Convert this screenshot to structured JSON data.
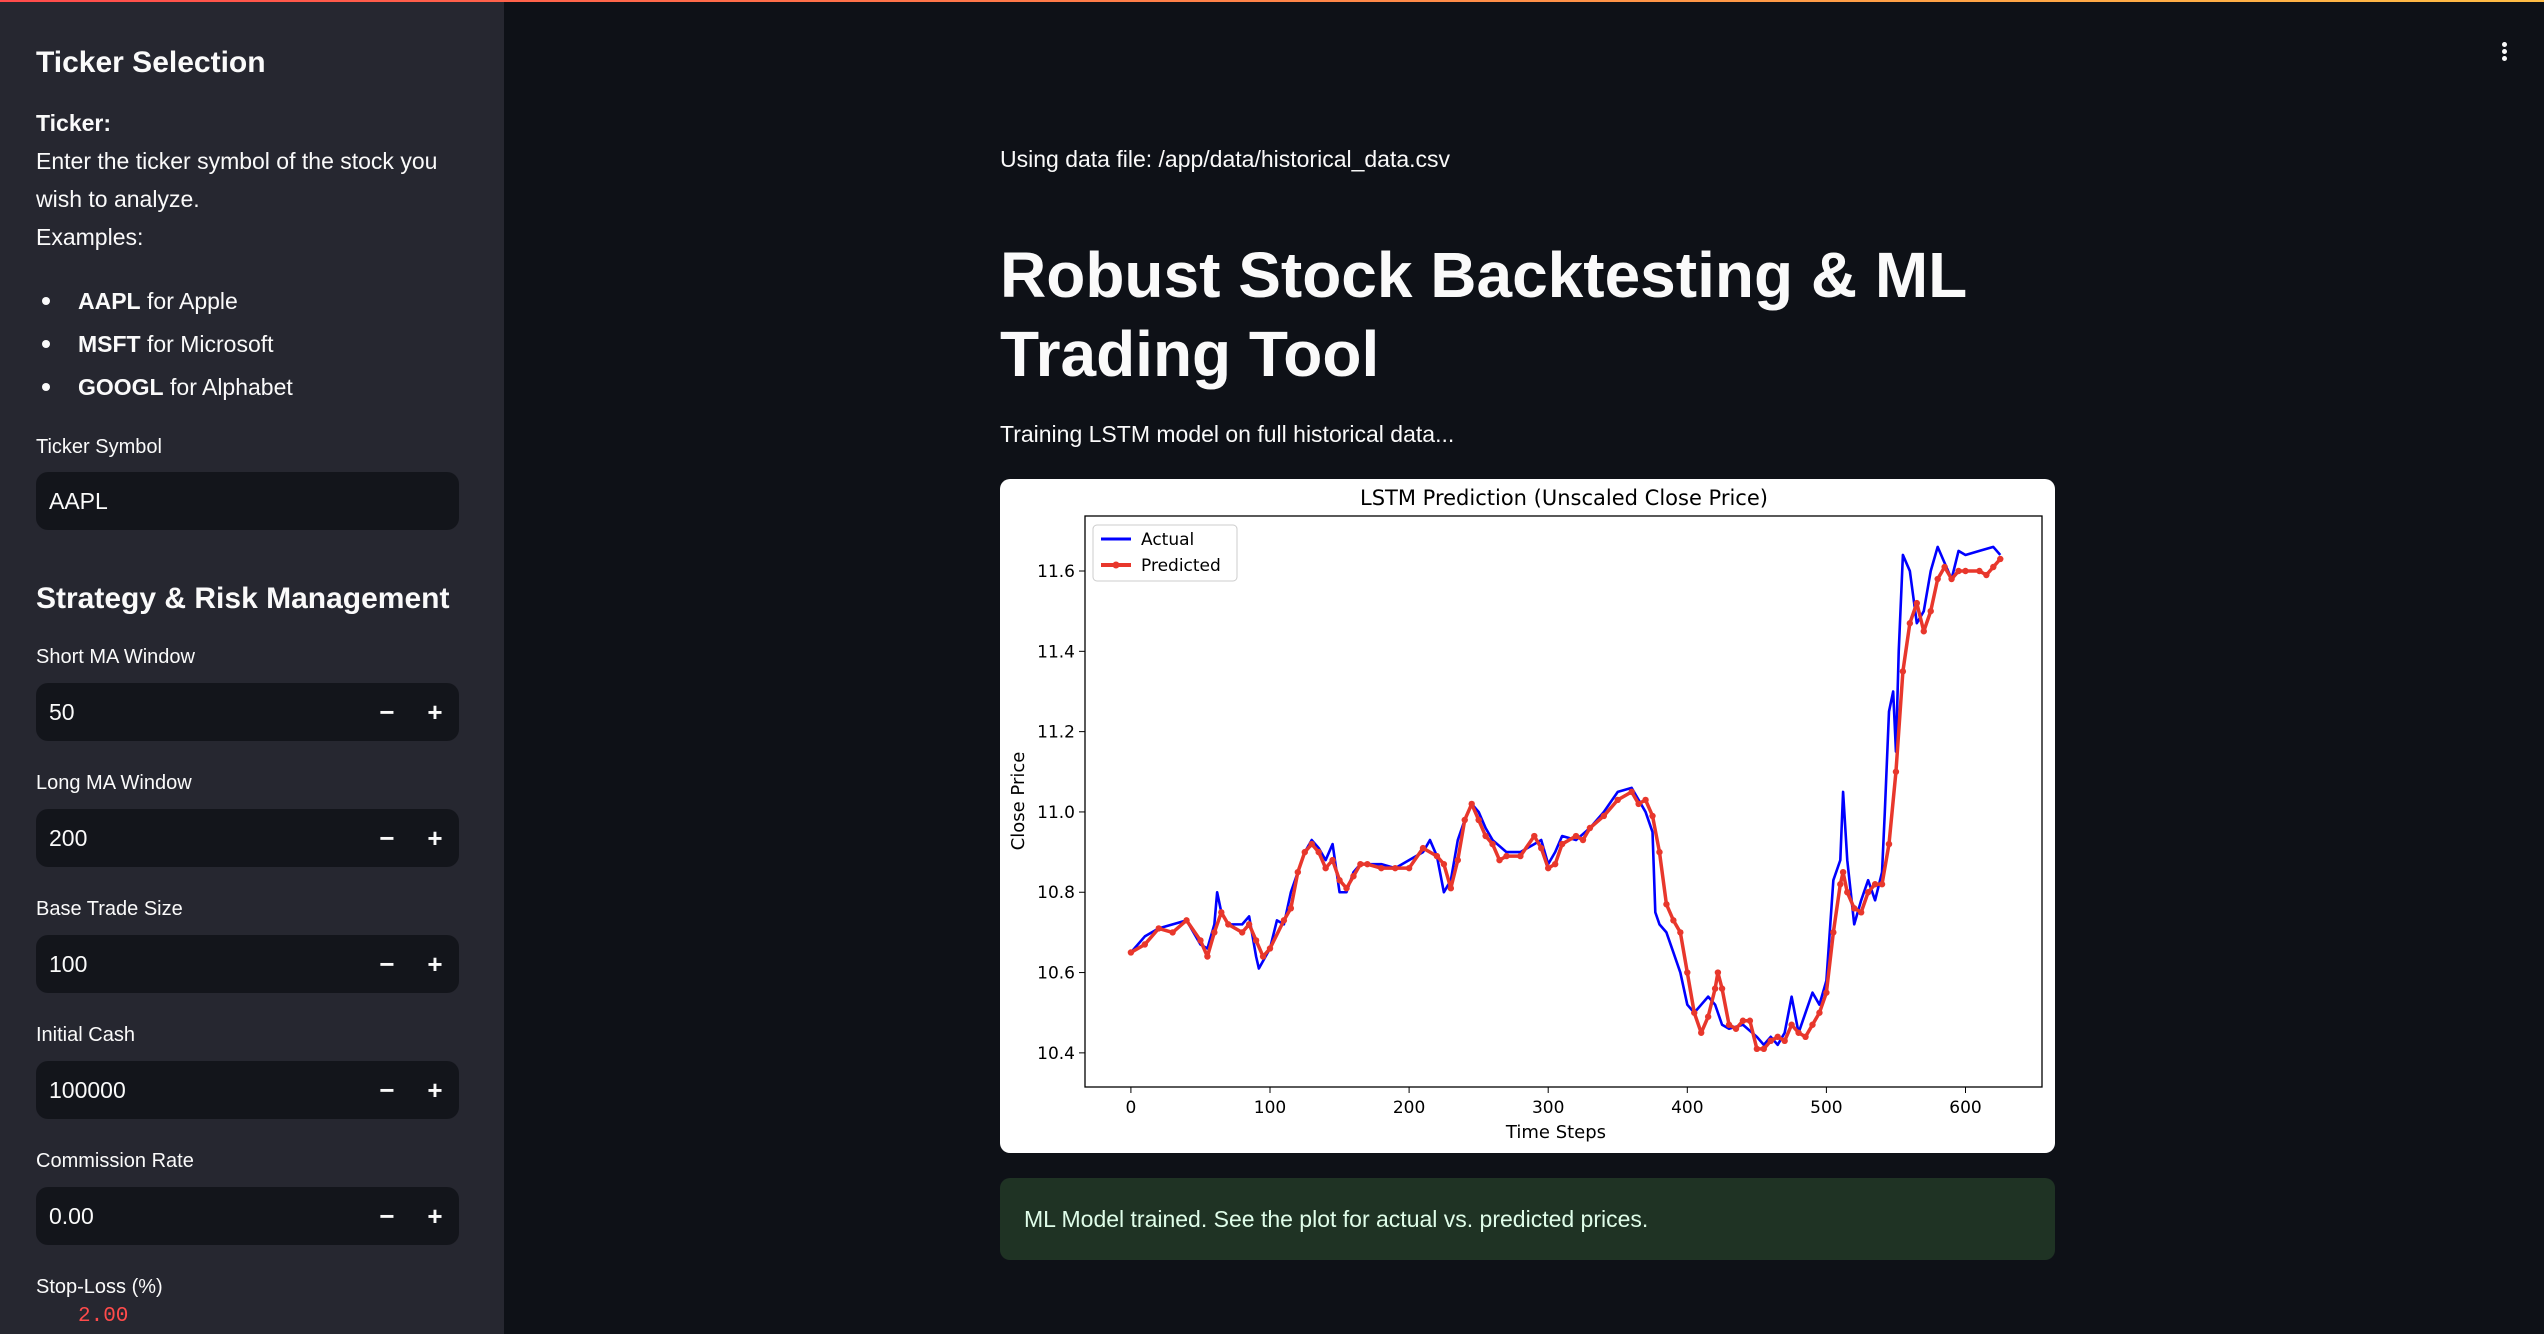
{
  "sidebar": {
    "ticker_heading": "Ticker Selection",
    "ticker_label": "Ticker:",
    "ticker_desc_1": "Enter the ticker symbol of the stock you",
    "ticker_desc_2": "wish to analyze.",
    "examples_label": "Examples:",
    "examples": [
      {
        "sym": "AAPL",
        "desc": " for Apple"
      },
      {
        "sym": "MSFT",
        "desc": " for Microsoft"
      },
      {
        "sym": "GOOGL",
        "desc": " for Alphabet"
      }
    ],
    "ticker_symbol_label": "Ticker Symbol",
    "ticker_symbol_value": "AAPL",
    "strategy_heading": "Strategy & Risk Management",
    "fields": [
      {
        "label": "Short MA Window",
        "value": "50"
      },
      {
        "label": "Long MA Window",
        "value": "200"
      },
      {
        "label": "Base Trade Size",
        "value": "100"
      },
      {
        "label": "Initial Cash",
        "value": "100000"
      },
      {
        "label": "Commission Rate",
        "value": "0.00"
      }
    ],
    "minus": "−",
    "plus": "+",
    "stop_loss_label": "Stop-Loss (%)",
    "stop_loss_value": "2.00"
  },
  "main": {
    "data_file": "Using data file: /app/data/historical_data.csv",
    "title": "Robust Stock Backtesting & ML Trading Tool",
    "training": "Training LSTM model on full historical data...",
    "success": "ML Model trained. See the plot for actual vs. predicted prices."
  },
  "colors": {
    "actual": "#0000ff",
    "predicted": "#e8372c",
    "accent": "#ff4b4b"
  },
  "chart_data": {
    "type": "line",
    "title": "LSTM Prediction (Unscaled Close Price)",
    "xlabel": "Time Steps",
    "ylabel": "Close Price",
    "xlim": [
      -33,
      655
    ],
    "ylim": [
      10.315,
      11.737
    ],
    "x_ticks": [
      "0",
      "100",
      "200",
      "300",
      "400",
      "500",
      "600"
    ],
    "y_ticks": [
      "10.4",
      "10.6",
      "10.8",
      "11.0",
      "11.2",
      "11.4",
      "11.6"
    ],
    "legend": {
      "position": "top-left",
      "entries": [
        "Actual",
        "Predicted"
      ]
    },
    "series": [
      {
        "name": "Actual",
        "points": [
          [
            0,
            10.65
          ],
          [
            10,
            10.69
          ],
          [
            20,
            10.71
          ],
          [
            30,
            10.72
          ],
          [
            40,
            10.73
          ],
          [
            50,
            10.67
          ],
          [
            55,
            10.66
          ],
          [
            60,
            10.72
          ],
          [
            62,
            10.8
          ],
          [
            65,
            10.75
          ],
          [
            70,
            10.72
          ],
          [
            80,
            10.72
          ],
          [
            85,
            10.74
          ],
          [
            90,
            10.64
          ],
          [
            92,
            10.61
          ],
          [
            100,
            10.66
          ],
          [
            105,
            10.73
          ],
          [
            110,
            10.72
          ],
          [
            115,
            10.8
          ],
          [
            120,
            10.85
          ],
          [
            125,
            10.9
          ],
          [
            130,
            10.93
          ],
          [
            135,
            10.91
          ],
          [
            140,
            10.88
          ],
          [
            145,
            10.92
          ],
          [
            150,
            10.8
          ],
          [
            155,
            10.8
          ],
          [
            160,
            10.85
          ],
          [
            165,
            10.87
          ],
          [
            170,
            10.87
          ],
          [
            180,
            10.87
          ],
          [
            190,
            10.86
          ],
          [
            200,
            10.88
          ],
          [
            210,
            10.9
          ],
          [
            215,
            10.93
          ],
          [
            220,
            10.89
          ],
          [
            225,
            10.8
          ],
          [
            230,
            10.83
          ],
          [
            235,
            10.93
          ],
          [
            240,
            10.98
          ],
          [
            245,
            11.02
          ],
          [
            250,
            11.0
          ],
          [
            255,
            10.96
          ],
          [
            260,
            10.93
          ],
          [
            270,
            10.9
          ],
          [
            280,
            10.9
          ],
          [
            290,
            10.92
          ],
          [
            295,
            10.93
          ],
          [
            300,
            10.87
          ],
          [
            305,
            10.9
          ],
          [
            310,
            10.94
          ],
          [
            320,
            10.93
          ],
          [
            330,
            10.96
          ],
          [
            340,
            11.0
          ],
          [
            350,
            11.05
          ],
          [
            360,
            11.06
          ],
          [
            365,
            11.03
          ],
          [
            370,
            11.0
          ],
          [
            375,
            10.95
          ],
          [
            377,
            10.75
          ],
          [
            380,
            10.72
          ],
          [
            385,
            10.7
          ],
          [
            390,
            10.65
          ],
          [
            395,
            10.6
          ],
          [
            400,
            10.52
          ],
          [
            405,
            10.5
          ],
          [
            410,
            10.52
          ],
          [
            415,
            10.54
          ],
          [
            420,
            10.52
          ],
          [
            425,
            10.47
          ],
          [
            430,
            10.46
          ],
          [
            440,
            10.47
          ],
          [
            450,
            10.44
          ],
          [
            455,
            10.42
          ],
          [
            460,
            10.44
          ],
          [
            465,
            10.42
          ],
          [
            470,
            10.45
          ],
          [
            475,
            10.54
          ],
          [
            480,
            10.45
          ],
          [
            485,
            10.5
          ],
          [
            490,
            10.55
          ],
          [
            495,
            10.52
          ],
          [
            500,
            10.58
          ],
          [
            505,
            10.83
          ],
          [
            510,
            10.88
          ],
          [
            512,
            11.05
          ],
          [
            515,
            10.88
          ],
          [
            520,
            10.72
          ],
          [
            525,
            10.78
          ],
          [
            530,
            10.83
          ],
          [
            535,
            10.78
          ],
          [
            540,
            10.85
          ],
          [
            542,
            11.0
          ],
          [
            545,
            11.25
          ],
          [
            548,
            11.3
          ],
          [
            550,
            11.15
          ],
          [
            552,
            11.4
          ],
          [
            555,
            11.64
          ],
          [
            560,
            11.6
          ],
          [
            565,
            11.47
          ],
          [
            570,
            11.5
          ],
          [
            575,
            11.6
          ],
          [
            580,
            11.66
          ],
          [
            585,
            11.62
          ],
          [
            590,
            11.58
          ],
          [
            595,
            11.65
          ],
          [
            600,
            11.64
          ],
          [
            610,
            11.65
          ],
          [
            620,
            11.66
          ],
          [
            625,
            11.64
          ]
        ]
      },
      {
        "name": "Predicted",
        "points": [
          [
            0,
            10.65
          ],
          [
            10,
            10.67
          ],
          [
            20,
            10.71
          ],
          [
            30,
            10.7
          ],
          [
            40,
            10.73
          ],
          [
            50,
            10.68
          ],
          [
            55,
            10.64
          ],
          [
            60,
            10.7
          ],
          [
            65,
            10.75
          ],
          [
            70,
            10.72
          ],
          [
            80,
            10.7
          ],
          [
            85,
            10.72
          ],
          [
            90,
            10.68
          ],
          [
            95,
            10.64
          ],
          [
            100,
            10.66
          ],
          [
            110,
            10.73
          ],
          [
            115,
            10.76
          ],
          [
            120,
            10.85
          ],
          [
            125,
            10.9
          ],
          [
            130,
            10.92
          ],
          [
            135,
            10.9
          ],
          [
            140,
            10.86
          ],
          [
            145,
            10.88
          ],
          [
            150,
            10.83
          ],
          [
            155,
            10.81
          ],
          [
            160,
            10.84
          ],
          [
            165,
            10.87
          ],
          [
            170,
            10.87
          ],
          [
            180,
            10.86
          ],
          [
            190,
            10.86
          ],
          [
            200,
            10.86
          ],
          [
            210,
            10.91
          ],
          [
            220,
            10.89
          ],
          [
            225,
            10.87
          ],
          [
            230,
            10.81
          ],
          [
            235,
            10.88
          ],
          [
            240,
            10.98
          ],
          [
            245,
            11.02
          ],
          [
            250,
            10.98
          ],
          [
            255,
            10.94
          ],
          [
            260,
            10.92
          ],
          [
            265,
            10.88
          ],
          [
            270,
            10.89
          ],
          [
            280,
            10.89
          ],
          [
            290,
            10.94
          ],
          [
            295,
            10.91
          ],
          [
            300,
            10.86
          ],
          [
            305,
            10.87
          ],
          [
            310,
            10.92
          ],
          [
            320,
            10.94
          ],
          [
            325,
            10.93
          ],
          [
            330,
            10.96
          ],
          [
            340,
            10.99
          ],
          [
            350,
            11.03
          ],
          [
            360,
            11.05
          ],
          [
            365,
            11.02
          ],
          [
            370,
            11.03
          ],
          [
            375,
            10.99
          ],
          [
            380,
            10.9
          ],
          [
            385,
            10.77
          ],
          [
            390,
            10.73
          ],
          [
            395,
            10.7
          ],
          [
            400,
            10.6
          ],
          [
            405,
            10.5
          ],
          [
            410,
            10.45
          ],
          [
            415,
            10.49
          ],
          [
            420,
            10.56
          ],
          [
            422,
            10.6
          ],
          [
            425,
            10.56
          ],
          [
            430,
            10.47
          ],
          [
            435,
            10.46
          ],
          [
            440,
            10.48
          ],
          [
            445,
            10.48
          ],
          [
            450,
            10.41
          ],
          [
            455,
            10.41
          ],
          [
            460,
            10.43
          ],
          [
            465,
            10.44
          ],
          [
            470,
            10.43
          ],
          [
            475,
            10.47
          ],
          [
            480,
            10.45
          ],
          [
            485,
            10.44
          ],
          [
            490,
            10.47
          ],
          [
            495,
            10.5
          ],
          [
            500,
            10.55
          ],
          [
            505,
            10.7
          ],
          [
            510,
            10.82
          ],
          [
            512,
            10.85
          ],
          [
            515,
            10.8
          ],
          [
            520,
            10.76
          ],
          [
            525,
            10.75
          ],
          [
            530,
            10.8
          ],
          [
            535,
            10.82
          ],
          [
            540,
            10.82
          ],
          [
            545,
            10.92
          ],
          [
            550,
            11.1
          ],
          [
            555,
            11.35
          ],
          [
            560,
            11.47
          ],
          [
            565,
            11.52
          ],
          [
            570,
            11.45
          ],
          [
            575,
            11.5
          ],
          [
            580,
            11.58
          ],
          [
            585,
            11.61
          ],
          [
            590,
            11.58
          ],
          [
            595,
            11.6
          ],
          [
            600,
            11.6
          ],
          [
            610,
            11.6
          ],
          [
            615,
            11.59
          ],
          [
            620,
            11.61
          ],
          [
            625,
            11.63
          ]
        ]
      }
    ]
  }
}
